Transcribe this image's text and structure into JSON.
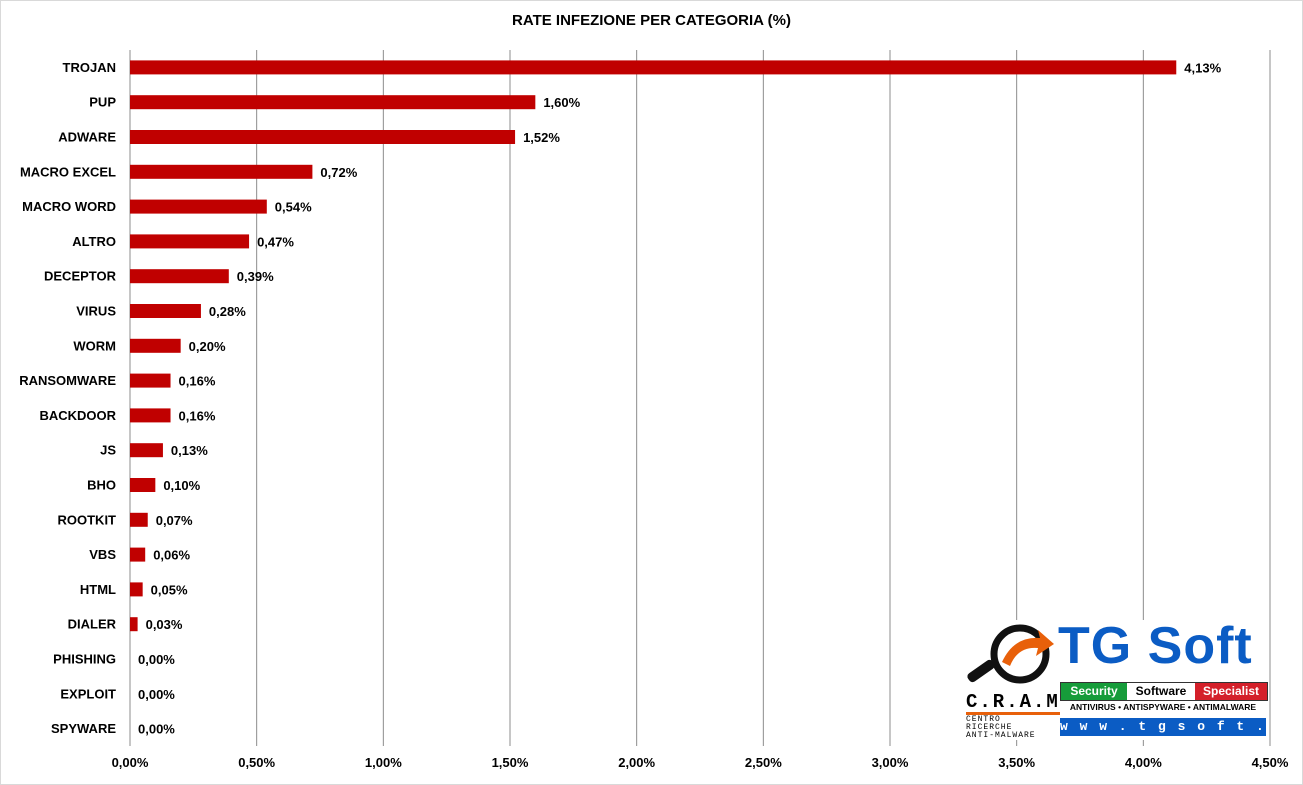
{
  "chart_data": {
    "type": "bar",
    "orientation": "horizontal",
    "title": "RATE INFEZIONE PER CATEGORIA (%)",
    "categories": [
      "TROJAN",
      "PUP",
      "ADWARE",
      "MACRO EXCEL",
      "MACRO WORD",
      "ALTRO",
      "DECEPTOR",
      "VIRUS",
      "WORM",
      "RANSOMWARE",
      "BACKDOOR",
      "JS",
      "BHO",
      "ROOTKIT",
      "VBS",
      "HTML",
      "DIALER",
      "PHISHING",
      "EXPLOIT",
      "SPYWARE"
    ],
    "values": [
      4.13,
      1.6,
      1.52,
      0.72,
      0.54,
      0.47,
      0.39,
      0.28,
      0.2,
      0.16,
      0.16,
      0.13,
      0.1,
      0.07,
      0.06,
      0.05,
      0.03,
      0.0,
      0.0,
      0.0
    ],
    "value_labels": [
      "4,13%",
      "1,60%",
      "1,52%",
      "0,72%",
      "0,54%",
      "0,47%",
      "0,39%",
      "0,28%",
      "0,20%",
      "0,16%",
      "0,16%",
      "0,13%",
      "0,10%",
      "0,07%",
      "0,06%",
      "0,05%",
      "0,03%",
      "0,00%",
      "0,00%",
      "0,00%"
    ],
    "xlim": [
      0,
      4.5
    ],
    "xticks": [
      0,
      0.5,
      1.0,
      1.5,
      2.0,
      2.5,
      3.0,
      3.5,
      4.0,
      4.5
    ],
    "xtick_labels": [
      "0,00%",
      "0,50%",
      "1,00%",
      "1,50%",
      "2,00%",
      "2,50%",
      "3,00%",
      "3,50%",
      "4,00%",
      "4,50%"
    ],
    "xlabel": "",
    "ylabel": "",
    "grid": "vertical",
    "legend": "none",
    "bar_color": "#c00000",
    "grid_color": "#8c8c8c"
  },
  "logo": {
    "brand": "TG Soft",
    "cram": "C.R.A.M",
    "cram_sub_1": "CENTRO",
    "cram_sub_2": "RICERCHE",
    "cram_sub_3": "ANTI-MALWARE",
    "strip": [
      "Security",
      "Software",
      "Specialist"
    ],
    "strip_colors": [
      "#169c3a",
      "#ffffff",
      "#d4202a"
    ],
    "tagline": "ANTIVIRUS • ANTISPYWARE • ANTIMALWARE",
    "url": "w w w . t g s o f t . i t",
    "brand_color": "#0b5cc4",
    "accent_color": "#e8600a"
  }
}
